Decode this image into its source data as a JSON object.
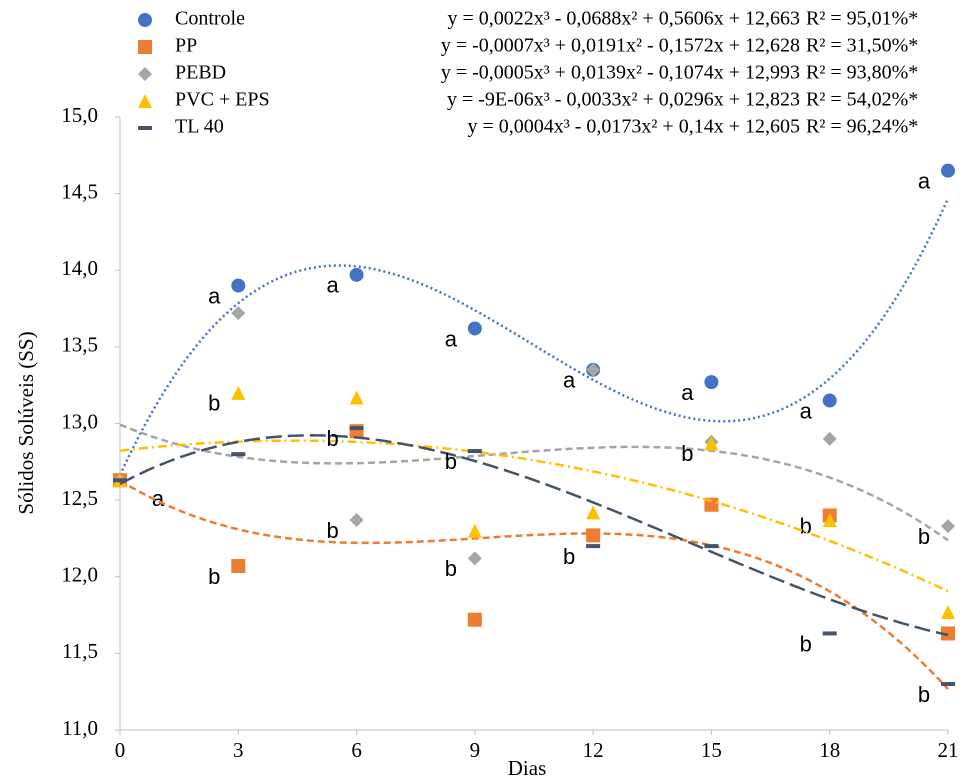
{
  "chart_data": {
    "type": "scatter",
    "x_label": "Dias",
    "y_label": "Sólidos Solúveis (SS)",
    "x": [
      0,
      3,
      6,
      9,
      12,
      15,
      18,
      21
    ],
    "xlim": [
      0,
      21
    ],
    "xticks": [
      0,
      3,
      6,
      9,
      12,
      15,
      18,
      21
    ],
    "ylim": [
      11,
      15
    ],
    "yticks": [
      {
        "value": 11,
        "label": "11,0"
      },
      {
        "value": 11.5,
        "label": "11,5"
      },
      {
        "value": 12,
        "label": "12,0"
      },
      {
        "value": 12.5,
        "label": "12,5"
      },
      {
        "value": 13,
        "label": "13,0"
      },
      {
        "value": 13.5,
        "label": "13,5"
      },
      {
        "value": 14,
        "label": "14,0"
      },
      {
        "value": 14.5,
        "label": "14,5"
      },
      {
        "value": 15,
        "label": "15,0"
      }
    ],
    "grid": false,
    "series": [
      {
        "name": "Controle",
        "color": "#4472c4",
        "marker": "circle",
        "line_style": "dotted",
        "values": [
          12.63,
          13.9,
          13.97,
          13.62,
          13.35,
          13.27,
          13.15,
          14.65
        ],
        "letters": [
          "a",
          "a",
          "a",
          "a",
          "a",
          "a",
          "a",
          "a"
        ],
        "equation": "y = 0,0022x³ - 0,0688x² + 0,5606x + 12,663",
        "r2": "R² = 95,01%*",
        "coefficients": [
          0.0022,
          -0.0688,
          0.5606,
          12.663
        ]
      },
      {
        "name": "PP",
        "color": "#ed7d31",
        "marker": "square",
        "line_style": "dashed",
        "values": [
          12.63,
          12.07,
          12.95,
          11.72,
          12.27,
          12.47,
          12.4,
          11.63
        ],
        "letters": [
          null,
          "b",
          null,
          null,
          null,
          null,
          "b",
          null
        ],
        "equation": "y = -0,0007x³ + 0,0191x² - 0,1572x + 12,628",
        "r2": "R² = 31,50%*",
        "coefficients": [
          -0.0007,
          0.0191,
          -0.1572,
          12.628
        ]
      },
      {
        "name": "PEBD",
        "color": "#a5a5a5",
        "marker": "diamond",
        "line_style": "dashed",
        "values": [
          12.63,
          13.72,
          12.37,
          12.12,
          13.35,
          12.88,
          12.9,
          12.33
        ],
        "letters": [
          null,
          null,
          "b",
          "b",
          null,
          null,
          null,
          "b"
        ],
        "equation": "y = -0,0005x³ + 0,0139x² - 0,1074x + 12,993",
        "r2": "R² = 93,80%*",
        "coefficients": [
          -0.0005,
          0.0139,
          -0.1074,
          12.993
        ]
      },
      {
        "name": "PVC + EPS",
        "color": "#ffc000",
        "marker": "triangle",
        "line_style": "dashdot",
        "values": [
          12.63,
          13.2,
          13.17,
          12.3,
          12.42,
          12.87,
          12.37,
          11.77
        ],
        "letters": [
          null,
          "b",
          null,
          null,
          null,
          "b",
          null,
          null
        ],
        "equation": "y = -9E-06x³ - 0,0033x² + 0,0296x + 12,823",
        "r2": "R² = 54,02%*",
        "coefficients": [
          -9e-06,
          -0.0033,
          0.0296,
          12.823
        ]
      },
      {
        "name": "TL 40",
        "color": "#44546a",
        "marker": "dash",
        "line_style": "longdash",
        "values": [
          12.63,
          12.8,
          12.97,
          12.82,
          12.2,
          12.2,
          11.63,
          11.3
        ],
        "letters": [
          null,
          null,
          "b",
          "b",
          "b",
          null,
          "b",
          "b"
        ],
        "equation": "y = 0,0004x³ - 0,0173x² + 0,14x + 12,605",
        "r2": "R² = 96,24%*",
        "coefficients": [
          0.0004,
          -0.0173,
          0.14,
          12.605
        ]
      }
    ]
  }
}
